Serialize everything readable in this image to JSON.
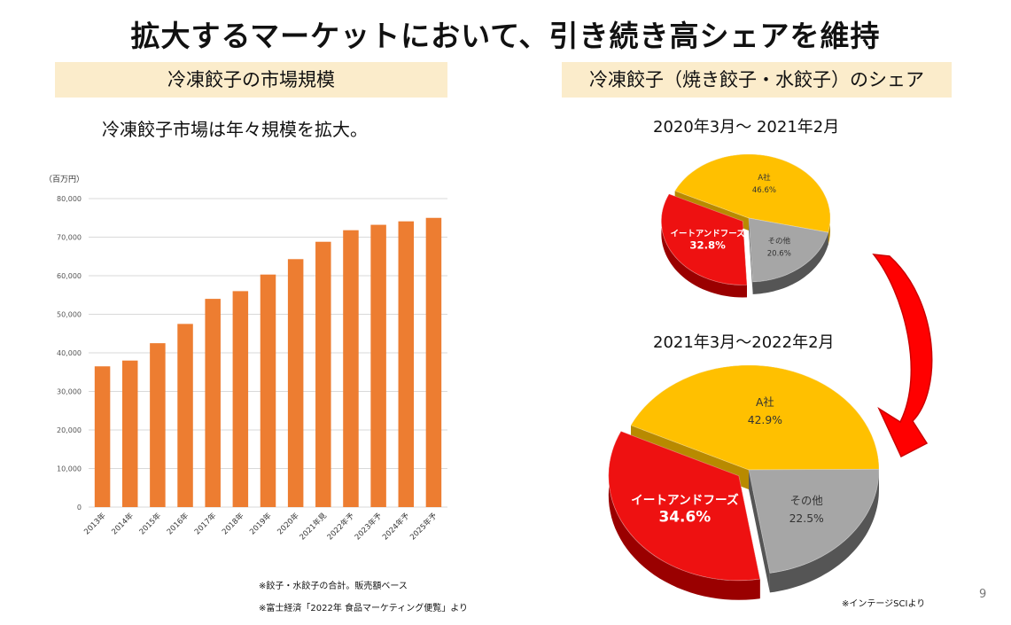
{
  "title": "拡大するマーケットにおいて、引き続き高シェアを維持",
  "left_panel": {
    "header": "冷凍餃子の市場規模",
    "subtitle": "冷凍餃子市場は年々規模を拡大。",
    "notes": [
      "※餃子・水餃子の合計。販売額ベース",
      "※富士経済「2022年 食品マーケティング便覧」より"
    ]
  },
  "right_panel": {
    "header": "冷凍餃子（焼き餃子・水餃子）のシェア",
    "period1": "2020年3月～ 2021年2月",
    "period2": "2021年3月～2022年2月",
    "source": "※インテージSCIより"
  },
  "page_number": "9",
  "colors": {
    "bar": "#ed7d31",
    "a_company": "#ffc000",
    "others": "#a6a6a6",
    "itoand": "#ee1111",
    "arrow": "#ff0000",
    "header_bg": "#fbeccb"
  },
  "chart_data": [
    {
      "type": "bar",
      "title": "冷凍餃子の市場規模",
      "unit_label": "（百万円）",
      "categories": [
        "2013年",
        "2014年",
        "2015年",
        "2016年",
        "2017年",
        "2018年",
        "2019年",
        "2020年",
        "2021年見",
        "2022年予",
        "2023年予",
        "2024年予",
        "2025年予"
      ],
      "values": [
        36500,
        38000,
        42500,
        47500,
        54000,
        56000,
        60300,
        64300,
        68800,
        71800,
        73200,
        74100,
        75000
      ],
      "ylim": [
        0,
        80000
      ],
      "yticks": [
        "0",
        "10,000",
        "20,000",
        "30,000",
        "40,000",
        "50,000",
        "60,000",
        "70,000",
        "80,000"
      ],
      "grid": true
    },
    {
      "type": "pie",
      "title": "2020年3月～ 2021年2月",
      "slices": [
        {
          "name": "A社",
          "value": 46.6,
          "label": "46.6%"
        },
        {
          "name": "その他",
          "value": 20.6,
          "label": "20.6%"
        },
        {
          "name": "イートアンドフーズ",
          "value": 32.8,
          "label": "32.8%"
        }
      ]
    },
    {
      "type": "pie",
      "title": "2021年3月～2022年2月",
      "slices": [
        {
          "name": "A社",
          "value": 42.9,
          "label": "42.9%"
        },
        {
          "name": "その他",
          "value": 22.5,
          "label": "22.5%"
        },
        {
          "name": "イートアンドフーズ",
          "value": 34.6,
          "label": "34.6%"
        }
      ]
    }
  ]
}
